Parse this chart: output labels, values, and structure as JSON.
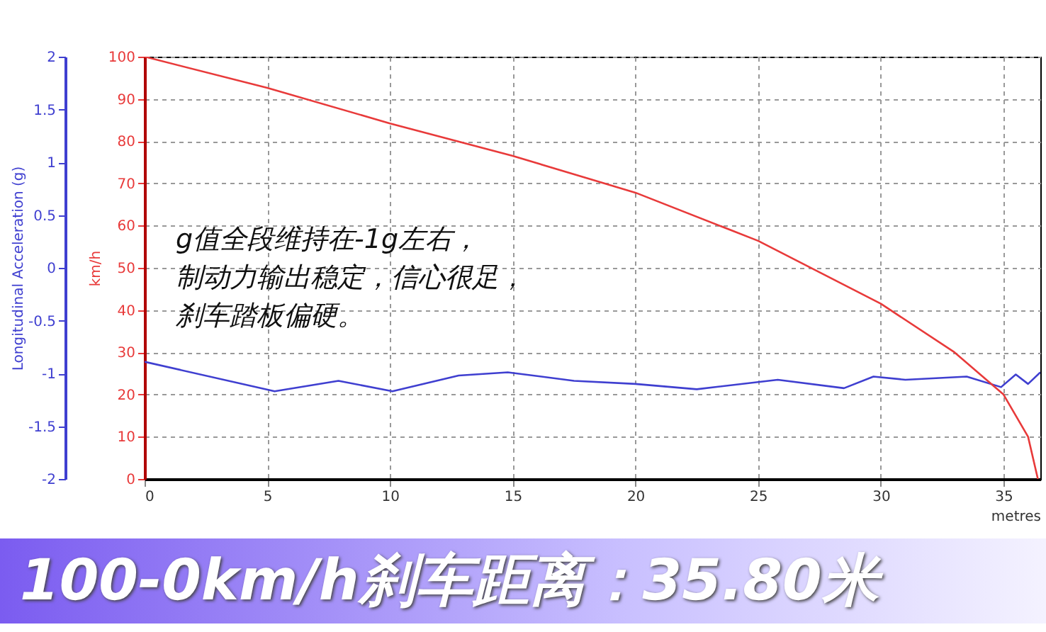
{
  "chart_data": {
    "type": "line",
    "title": "100-0km/h刹车距离：35.80米",
    "xlabel": "metres",
    "ylabel": "Longitudinal Acceleration (g)",
    "y2label": "km/h",
    "annotations": [
      "g值全段维持在-1g左右，制动力输出稳定，信心很足，刹车踏板偏硬。"
    ],
    "xlim": [
      0,
      36.5
    ],
    "xticks": [
      0,
      5,
      10,
      15,
      20,
      25,
      30,
      35
    ],
    "ylim": [
      -2,
      2
    ],
    "yticks": [
      -2,
      -1.5,
      -1,
      -0.5,
      0,
      0.5,
      1,
      1.5,
      2
    ],
    "y2lim": [
      0,
      100
    ],
    "y2ticks": [
      0,
      10,
      20,
      30,
      40,
      50,
      60,
      70,
      80,
      90,
      100
    ],
    "grid": true,
    "series": [
      {
        "color": "#3f3fd0",
        "x": [
          0,
          5.3,
          7.9,
          10.1,
          12.8,
          14.8,
          17.5,
          20,
          22.5,
          25.8,
          28.5,
          29.7,
          31,
          33.5,
          34.9,
          35.5,
          36,
          36.5
        ],
        "values": [
          -0.89,
          -1.17,
          -1.07,
          -1.17,
          -1.02,
          -0.99,
          -1.07,
          -1.1,
          -1.15,
          -1.06,
          -1.14,
          -1.03,
          -1.06,
          -1.03,
          -1.13,
          -1.01,
          -1.1,
          -0.99
        ]
      },
      {
        "color": "#e83a3a",
        "axis": "y2",
        "x": [
          0,
          5,
          10,
          15,
          20,
          25,
          30,
          33,
          35,
          36,
          36.4
        ],
        "values": [
          100,
          92.6,
          84.2,
          76.5,
          67.8,
          56.4,
          41.5,
          30,
          20,
          10,
          0
        ]
      }
    ]
  }
}
